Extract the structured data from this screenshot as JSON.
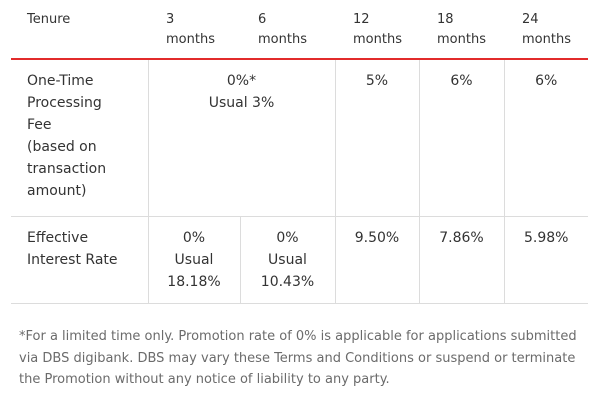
{
  "table": {
    "headers": {
      "tenure": "Tenure",
      "m3": [
        "3",
        "months"
      ],
      "m6": [
        "6",
        "months"
      ],
      "m12": [
        "12",
        "months"
      ],
      "m18": [
        "18",
        "months"
      ],
      "m24": [
        "24",
        "months"
      ]
    },
    "fee_row": {
      "label": [
        "One-Time",
        "Processing",
        "Fee",
        "(based on",
        "transaction",
        "amount)"
      ],
      "m3_m6": [
        "0%*",
        "Usual 3%"
      ],
      "m12": "5%",
      "m18": "6%",
      "m24": "6%"
    },
    "rate_row": {
      "label": [
        "Effective",
        "Interest Rate"
      ],
      "m3": [
        "0%",
        "Usual",
        "18.18%"
      ],
      "m6": [
        "0%",
        "Usual",
        "10.43%"
      ],
      "m12": "9.50%",
      "m18": "7.86%",
      "m24": "5.98%"
    }
  },
  "footnote": "*For a limited time only. Promotion rate of 0% is applicable for applications submitted via DBS digibank. DBS may vary these Terms and Conditions or suspend or terminate the Promotion without any notice of liability to any party.",
  "colors": {
    "header_rule": "#e22b2b",
    "grid_line": "#dcdcdc",
    "text": "#333333",
    "footnote_text": "#6b6b6b"
  }
}
